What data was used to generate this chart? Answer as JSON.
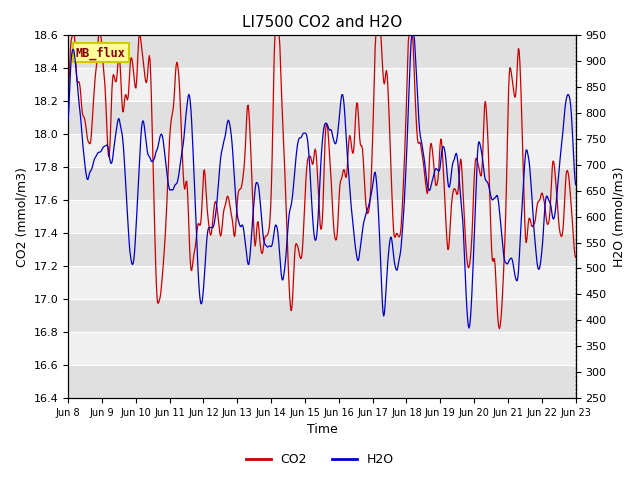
{
  "title": "LI7500 CO2 and H2O",
  "xlabel": "Time",
  "ylabel_left": "CO2 (mmol/m3)",
  "ylabel_right": "H2O (mmol/m3)",
  "co2_ylim": [
    16.4,
    18.6
  ],
  "h2o_ylim": [
    250,
    950
  ],
  "co2_yticks": [
    16.4,
    16.6,
    16.8,
    17.0,
    17.2,
    17.4,
    17.6,
    17.8,
    18.0,
    18.2,
    18.4,
    18.6
  ],
  "h2o_yticks": [
    250,
    300,
    350,
    400,
    450,
    500,
    550,
    600,
    650,
    700,
    750,
    800,
    850,
    900,
    950
  ],
  "co2_color": "#cc0000",
  "h2o_color": "#0000cc",
  "bg_color": "#ffffff",
  "plot_bg_light": "#f0f0f0",
  "plot_bg_dark": "#e0e0e0",
  "watermark_text": "MB_flux",
  "watermark_bg": "#ffff99",
  "watermark_border": "#cccc00",
  "tick_labels": [
    "Jun 8",
    "Jun 9",
    "Jun 10",
    "Jun 11",
    "Jun 12",
    "Jun 13",
    "Jun 14",
    "Jun 15",
    "Jun 16",
    "Jun 17",
    "Jun 18",
    "Jun 19",
    "Jun 20",
    "Jun 21",
    "Jun 22",
    "Jun 23"
  ],
  "line_width": 0.9,
  "legend_co2": "CO2",
  "legend_h2o": "H2O",
  "title_fontsize": 11,
  "axis_label_fontsize": 9,
  "tick_fontsize": 8,
  "xtick_fontsize": 7
}
